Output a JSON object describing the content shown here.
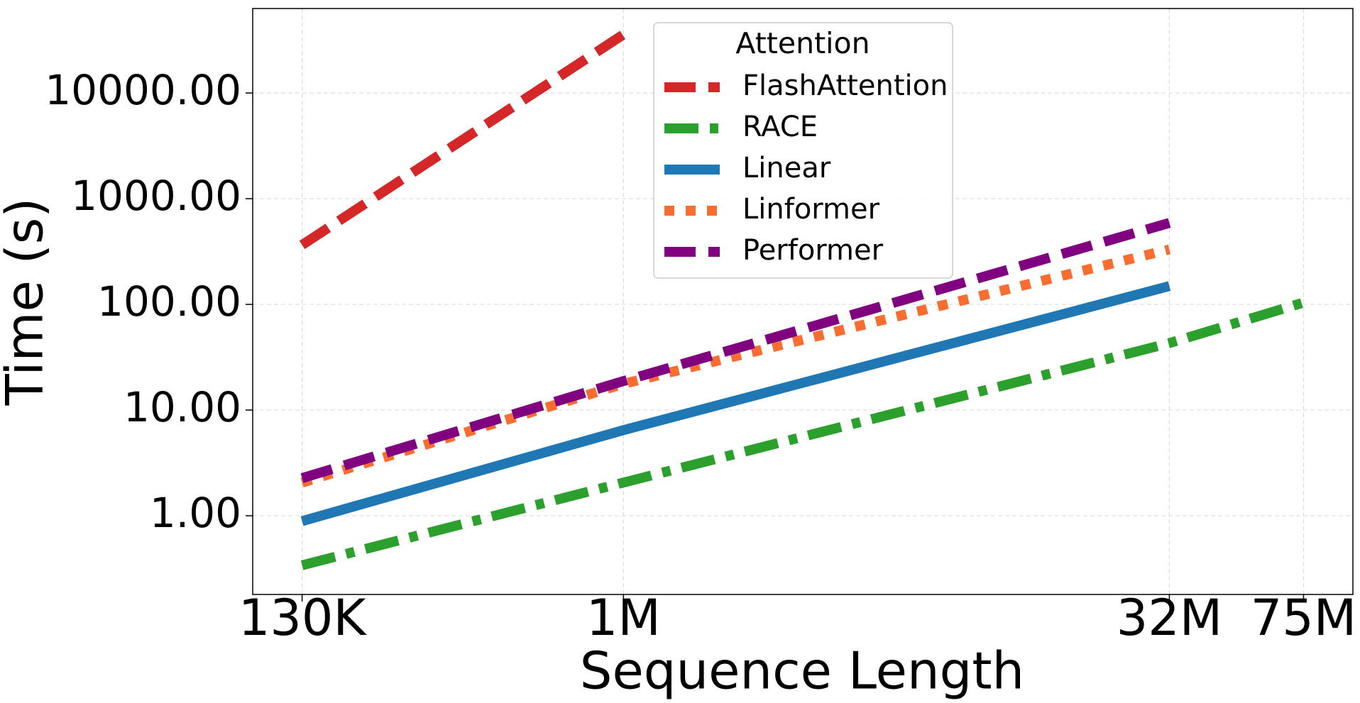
{
  "chart_data": {
    "type": "line",
    "x_label": "Sequence Length",
    "y_label": "Time (s)",
    "log_x": true,
    "log_y": true,
    "grid": true,
    "legend_title": "Attention",
    "legend_position": "upper center",
    "xlim": [
      95000,
      102600000
    ],
    "ylim": [
      0.18,
      63000
    ],
    "xticks": [
      {
        "value": 130000,
        "label": "130K"
      },
      {
        "value": 1000000,
        "label": "1M"
      },
      {
        "value": 32000000,
        "label": "32M"
      },
      {
        "value": 75000000,
        "label": "75M"
      }
    ],
    "yticks": [
      {
        "value": 1,
        "label": "1.00"
      },
      {
        "value": 10,
        "label": "10.00"
      },
      {
        "value": 100,
        "label": "100.00"
      },
      {
        "value": 1000,
        "label": "1000.00"
      },
      {
        "value": 10000,
        "label": "10000.00"
      }
    ],
    "series": [
      {
        "name": "FlashAttention",
        "color": "#d62728",
        "linestyle": "dashed",
        "x": [
          130000,
          1000000
        ],
        "values": [
          365,
          35800
        ]
      },
      {
        "name": "RACE",
        "color": "#2ca02c",
        "linestyle": "dashdot",
        "x": [
          130000,
          1000000,
          32000000,
          75000000
        ],
        "values": [
          0.34,
          2.06,
          43,
          104
        ]
      },
      {
        "name": "Linear",
        "color": "#1f77b4",
        "linestyle": "solid",
        "x": [
          130000,
          1000000,
          32000000
        ],
        "values": [
          0.89,
          6.46,
          149
        ]
      },
      {
        "name": "Linformer",
        "color": "#f96e30",
        "linestyle": "dotted",
        "x": [
          130000,
          1000000,
          32000000
        ],
        "values": [
          2.06,
          17.7,
          331
        ]
      },
      {
        "name": "Performer",
        "color": "#800080",
        "linestyle": "dashed",
        "x": [
          130000,
          1000000,
          32000000
        ],
        "values": [
          2.27,
          18.8,
          590
        ]
      }
    ]
  }
}
